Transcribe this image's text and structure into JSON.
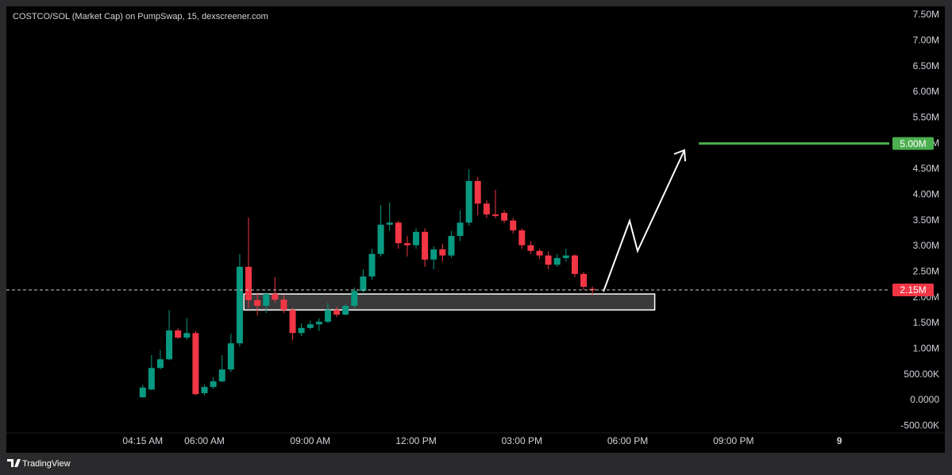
{
  "chart_data": {
    "type": "candlestick",
    "title": "COSTCO/SOL (Market Cap) on PumpSwap, 15, dexscreener.com",
    "x": [
      255,
      270,
      285,
      300,
      315,
      330,
      345,
      360,
      375,
      390,
      405,
      420,
      435,
      450,
      465,
      480,
      495,
      510,
      525,
      540,
      555,
      570,
      585,
      600,
      615,
      630,
      645,
      660,
      675,
      690,
      705,
      720,
      735,
      750,
      765,
      780,
      795,
      810,
      825,
      840,
      855,
      870,
      885,
      900,
      915,
      930,
      945,
      960,
      975,
      990,
      1005,
      1020
    ],
    "open": [
      60000,
      210000,
      630000,
      800000,
      1360000,
      1220000,
      1310000,
      140000,
      260000,
      370000,
      600000,
      1110000,
      2600000,
      1950000,
      1840000,
      2070000,
      1960000,
      1760000,
      1310000,
      1410000,
      1480000,
      1530000,
      1760000,
      1670000,
      1840000,
      2130000,
      2410000,
      2850000,
      3420000,
      3460000,
      3060000,
      3020000,
      3280000,
      2740000,
      2940000,
      2820000,
      3200000,
      3460000,
      4270000,
      3830000,
      3620000,
      3650000,
      3500000,
      3310000,
      3020000,
      2910000,
      2820000,
      2640000,
      2770000,
      2820000,
      2460000,
      2170000
    ],
    "high": [
      300000,
      880000,
      980000,
      1760000,
      1400000,
      1600000,
      1350000,
      300000,
      450000,
      880000,
      1300000,
      2850000,
      3560000,
      2100000,
      2100000,
      2400000,
      2050000,
      1800000,
      1500000,
      1550000,
      1600000,
      1900000,
      1820000,
      1880000,
      2200000,
      2550000,
      2950000,
      3800000,
      3850000,
      3500000,
      3200000,
      3350000,
      3350000,
      3000000,
      3050000,
      3300000,
      3700000,
      4500000,
      4350000,
      3900000,
      4100000,
      3700000,
      3550000,
      3350000,
      3100000,
      2950000,
      2900000,
      2850000,
      2950000,
      2840000,
      2500000,
      2220000
    ],
    "low": [
      50000,
      200000,
      600000,
      780000,
      1200000,
      1180000,
      100000,
      100000,
      220000,
      350000,
      550000,
      1050000,
      1800000,
      1650000,
      1700000,
      1900000,
      1700000,
      1170000,
      1250000,
      1380000,
      1350000,
      1500000,
      1620000,
      1650000,
      1800000,
      2100000,
      2350000,
      2800000,
      3300000,
      2950000,
      2800000,
      2950000,
      2600000,
      2550000,
      2700000,
      2780000,
      3100000,
      3400000,
      3600000,
      3550000,
      3550000,
      3450000,
      3250000,
      2950000,
      2850000,
      2750000,
      2550000,
      2600000,
      2700000,
      2400000,
      2150000,
      2050000
    ],
    "close": [
      250000,
      630000,
      800000,
      1360000,
      1220000,
      1310000,
      120000,
      260000,
      370000,
      600000,
      1110000,
      2600000,
      1950000,
      1840000,
      2070000,
      1960000,
      1760000,
      1310000,
      1410000,
      1480000,
      1530000,
      1760000,
      1670000,
      1840000,
      2130000,
      2410000,
      2850000,
      3420000,
      3460000,
      3060000,
      3020000,
      3280000,
      2740000,
      2940000,
      2820000,
      3200000,
      3460000,
      4270000,
      3830000,
      3620000,
      3590000,
      3500000,
      3310000,
      3020000,
      2910000,
      2820000,
      2640000,
      2770000,
      2820000,
      2460000,
      2210000,
      2150000
    ],
    "up_color": "#089981",
    "down_color": "#f23645",
    "xlim": [
      23,
      1525
    ],
    "ylim": [
      -634000,
      7670000
    ],
    "xticks": [
      {
        "value": 255,
        "label": "04:15 AM"
      },
      {
        "value": 360,
        "label": "06:00 AM"
      },
      {
        "value": 540,
        "label": "09:00 AM"
      },
      {
        "value": 720,
        "label": "12:00 PM"
      },
      {
        "value": 900,
        "label": "03:00 PM"
      },
      {
        "value": 1080,
        "label": "06:00 PM"
      },
      {
        "value": 1260,
        "label": "09:00 PM"
      },
      {
        "value": 1440,
        "label": "9"
      }
    ],
    "yticks": [
      {
        "value": -500000,
        "label": "-500.00K"
      },
      {
        "value": 0,
        "label": "0.0000"
      },
      {
        "value": 500000,
        "label": "500.00K"
      },
      {
        "value": 1000000,
        "label": "1.00M"
      },
      {
        "value": 1500000,
        "label": "1.50M"
      },
      {
        "value": 2000000,
        "label": "2.00M"
      },
      {
        "value": 2500000,
        "label": "2.50M"
      },
      {
        "value": 3000000,
        "label": "3.00M"
      },
      {
        "value": 3500000,
        "label": "3.50M"
      },
      {
        "value": 4000000,
        "label": "4.00M"
      },
      {
        "value": 4500000,
        "label": "4.50M"
      },
      {
        "value": 5000000,
        "label": "5.00M"
      },
      {
        "value": 5500000,
        "label": "5.50M"
      },
      {
        "value": 6000000,
        "label": "6.00M"
      },
      {
        "value": 6500000,
        "label": "6.50M"
      },
      {
        "value": 7000000,
        "label": "7.00M"
      },
      {
        "value": 7500000,
        "label": "7.50M"
      }
    ],
    "last_price": {
      "value": 2150000,
      "label": "2.15M",
      "color": "#f23645"
    },
    "target": {
      "value": 5000000,
      "label": "5.00M",
      "color": "#4caf50",
      "x_start": 1201
    },
    "zone": {
      "x": [
        427,
        1126
      ],
      "y": [
        1760000,
        2070000
      ]
    }
  },
  "footer": {
    "brand": "TradingView"
  }
}
